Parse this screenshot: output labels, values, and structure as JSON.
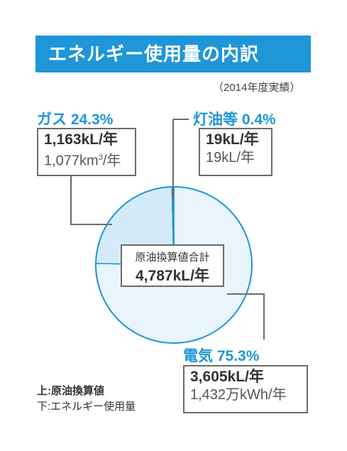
{
  "title": "エネルギー使用量の内訳",
  "period": "（2014年度実績）",
  "legend": {
    "upper": "上:原油換算値",
    "lower": "下:エネルギー使用量"
  },
  "total": {
    "label": "原油換算値合計",
    "value": "4,787kL/年"
  },
  "colors": {
    "accent": "#1f96d8",
    "gas": "#d4eaf8",
    "other": "#1f96d8",
    "electric": "#e9f4fc",
    "stroke": "#1f96d8"
  },
  "categories": {
    "gas": {
      "label": "ガス 24.3%",
      "crude": "1,163kL/年",
      "usage_value": "1,077km",
      "usage_sup": "3",
      "usage_unit": "/年"
    },
    "other": {
      "label": "灯油等 0.4%",
      "crude": "19kL/年",
      "usage": "19kL/年"
    },
    "electric": {
      "label": "電気 75.3%",
      "crude": "3,605kL/年",
      "usage": "1,432万kWh/年"
    }
  },
  "chart_data": {
    "type": "pie",
    "title": "エネルギー使用量の内訳",
    "subtitle": "（2014年度実績）",
    "labels": [
      "電気",
      "ガス",
      "灯油等"
    ],
    "values": [
      75.3,
      24.3,
      0.4
    ],
    "unit": "%",
    "crude_oil_equivalent_kL_per_year": [
      3605,
      1163,
      19
    ],
    "usage": [
      "1,432万kWh/年",
      "1,077km3/年",
      "19kL/年"
    ],
    "total": "4,787kL/年"
  }
}
